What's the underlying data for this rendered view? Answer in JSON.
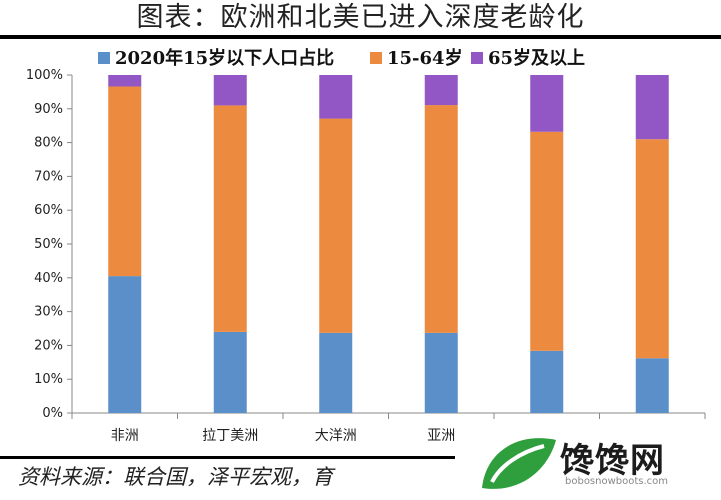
{
  "header": {
    "title": "图表：欧洲和北美已进入深度老龄化"
  },
  "footer": {
    "source": "资料来源：联合国，泽平宏观，育"
  },
  "watermark": {
    "brand": "馋馋网",
    "url": "bobosnowboots.com",
    "icon": "leaf-logo-icon"
  },
  "colors": {
    "s1": "#5b8fc9",
    "s2": "#ec8b3f",
    "s3": "#9257c4"
  },
  "chart_data": {
    "type": "bar",
    "stacked": true,
    "title": "图表：欧洲和北美已进入深度老龄化",
    "categories": [
      "非洲",
      "拉丁美洲",
      "大洋洲",
      "亚洲",
      "",
      ""
    ],
    "series": [
      {
        "name": "2020年15岁以下人口占比",
        "values": [
          40.5,
          24,
          23.7,
          23.7,
          18.4,
          16.2
        ]
      },
      {
        "name": "15-64岁",
        "values": [
          56.1,
          67.0,
          63.4,
          67.4,
          64.8,
          64.8
        ]
      },
      {
        "name": "65岁及以上",
        "values": [
          3.4,
          9.0,
          12.9,
          8.9,
          16.8,
          19.0
        ]
      }
    ],
    "yticks": [
      "0%",
      "10%",
      "20%",
      "30%",
      "40%",
      "50%",
      "60%",
      "70%",
      "80%",
      "90%",
      "100%"
    ],
    "ylim": [
      0,
      100
    ],
    "legend": "top"
  }
}
